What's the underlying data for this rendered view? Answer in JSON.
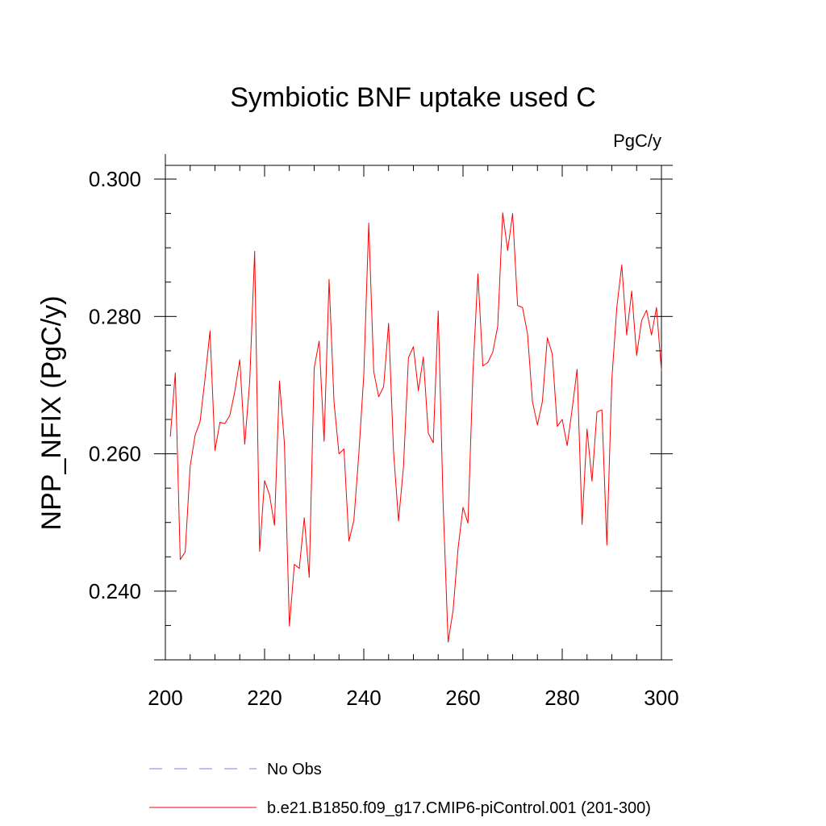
{
  "chart_data": {
    "type": "line",
    "title": "Symbiotic BNF uptake used C",
    "units_label": "PgC/y",
    "xlabel": "",
    "ylabel": "NPP_NFIX  (PgC/y)",
    "xlim": [
      200,
      300
    ],
    "ylim": [
      0.23,
      0.302
    ],
    "x_ticks": [
      "200",
      "220",
      "240",
      "260",
      "280",
      "300"
    ],
    "y_ticks": [
      "0.240",
      "0.260",
      "0.280",
      "0.300"
    ],
    "legend_placement": "bottom",
    "series": [
      {
        "name": "No Obs",
        "color": "#8a7fd0",
        "dashed": true,
        "values": []
      },
      {
        "name": "b.e21.B1850.f09_g17.CMIP6-piControl.001 (201-300)",
        "color": "#ff0000",
        "dashed": false,
        "x": [
          201,
          202,
          203,
          204,
          205,
          206,
          207,
          208,
          209,
          210,
          211,
          212,
          213,
          214,
          215,
          216,
          217,
          218,
          219,
          220,
          221,
          222,
          223,
          224,
          225,
          226,
          227,
          228,
          229,
          230,
          231,
          232,
          233,
          234,
          235,
          236,
          237,
          238,
          239,
          240,
          241,
          242,
          243,
          244,
          245,
          246,
          247,
          248,
          249,
          250,
          251,
          252,
          253,
          254,
          255,
          256,
          257,
          258,
          259,
          260,
          261,
          262,
          263,
          264,
          265,
          266,
          267,
          268,
          269,
          270,
          271,
          272,
          273,
          274,
          275,
          276,
          277,
          278,
          279,
          280,
          281,
          282,
          283,
          284,
          285,
          286,
          287,
          288,
          289,
          290,
          291,
          292,
          293,
          294,
          295,
          296,
          297,
          298,
          299,
          300
        ],
        "values": [
          0.2625,
          0.2718,
          0.2446,
          0.2457,
          0.2582,
          0.2627,
          0.2647,
          0.271,
          0.2779,
          0.2605,
          0.2646,
          0.2644,
          0.2656,
          0.2691,
          0.2737,
          0.2614,
          0.2705,
          0.2895,
          0.2458,
          0.2561,
          0.254,
          0.2496,
          0.2706,
          0.2615,
          0.2349,
          0.2439,
          0.2433,
          0.2507,
          0.242,
          0.2725,
          0.2764,
          0.2618,
          0.2854,
          0.2675,
          0.26,
          0.2607,
          0.2473,
          0.2503,
          0.26,
          0.2715,
          0.2936,
          0.272,
          0.2683,
          0.2698,
          0.279,
          0.2603,
          0.2502,
          0.2581,
          0.274,
          0.2756,
          0.2692,
          0.2741,
          0.263,
          0.2616,
          0.2808,
          0.2526,
          0.2326,
          0.2372,
          0.2462,
          0.2522,
          0.2499,
          0.2718,
          0.2862,
          0.2728,
          0.2733,
          0.2748,
          0.2786,
          0.2951,
          0.2896,
          0.295,
          0.2816,
          0.2813,
          0.2775,
          0.2676,
          0.2642,
          0.2676,
          0.2769,
          0.2745,
          0.264,
          0.265,
          0.2612,
          0.2665,
          0.2723,
          0.2497,
          0.2636,
          0.256,
          0.2661,
          0.2664,
          0.2467,
          0.2708,
          0.2813,
          0.2875,
          0.2773,
          0.2837,
          0.2743,
          0.2794,
          0.2809,
          0.2773,
          0.2813,
          0.2721
        ]
      }
    ]
  }
}
